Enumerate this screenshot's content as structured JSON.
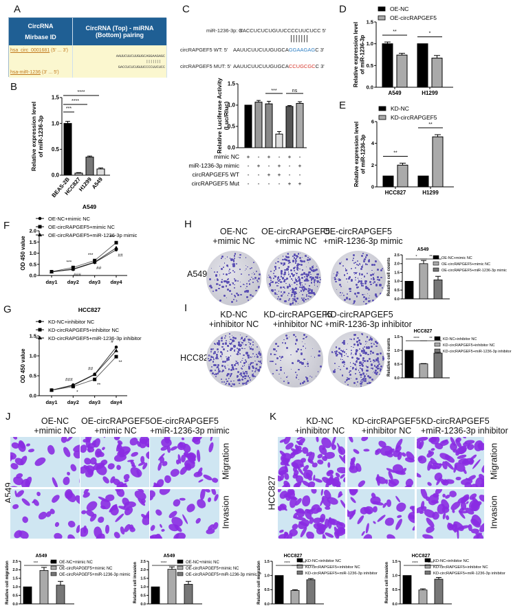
{
  "panels": {
    "A": {
      "label": "A",
      "header_left_1": "CircRNA",
      "header_left_2": "Mirbase ID",
      "header_right": "CircRNA (Top) - miRNA (Bottom) pairing",
      "circ_id": "hsa_circ_0001681",
      "circ_dir": "(5' ... 3')",
      "mir_id": "hsa-miR-1236",
      "mir_dir": "(3' ... 5')",
      "top_seq": "AAUUCUUCUUGUGCAGGAAGAGC",
      "pair_marks": "|||||||",
      "bottom_seq": "GACCUCUCUGUUCCCCUUCUCC"
    },
    "C_seq": {
      "label": "C",
      "mir_label": "miR-1236-3p: 3'",
      "mir_seq": "GACCUCUCUGUUCCCCUUCUCC  5'",
      "wt_label": "circRAPGEF5  WT: 5'",
      "wt_seq_prefix": "AAUUCUUCUUGUGCA",
      "wt_seq_site": "GGAAGAG",
      "wt_seq_suffix": "C 3'",
      "mut_label": "circRAPGEF5 MUT: 5'",
      "mut_seq_prefix": "AAUUCUUCUUGUGCA",
      "mut_seq_site": "CCUGCGC",
      "mut_seq_suffix": "C 3'",
      "pair_marks": "|||||||"
    },
    "F_title": "A549",
    "G_title": "HCC827",
    "H": {
      "label": "H",
      "row_label": "A549",
      "cols": [
        "OE-NC\n+mimic NC",
        "OE-circRAPGEF5\n+mimic NC",
        "OE-circRAPGEF5\n+miR-1236-3p mimic"
      ]
    },
    "I": {
      "label": "I",
      "row_label": "HCC827",
      "cols": [
        "KD-NC\n+inhibitor NC",
        "KD-circRAPGEF5\n+inhibitor NC",
        "KD-circRAPGEF5\n+miR-1236-3p inhibitor"
      ]
    },
    "J": {
      "label": "J",
      "row_label": "A549",
      "cols": [
        "OE-NC\n+mimic NC",
        "OE-circRAPGEF5\n+mimic NC",
        "OE-circRAPGEF5\n+miR-1236-3p mimic"
      ],
      "rows": [
        "Migration",
        "Invasion"
      ]
    },
    "K": {
      "label": "K",
      "row_label": "HCC827",
      "cols": [
        "KD-NC\n+inhibitor NC",
        "KD-circRAPGEF5\n+inhibitor NC",
        "KD-circRAPGEF5\n+miR-1236-3p inhibitor"
      ],
      "rows": [
        "Migration",
        "Invasion"
      ]
    }
  },
  "chart_data": [
    {
      "id": "B",
      "type": "bar",
      "title": "",
      "categories": [
        "BEAS-2B",
        "HCC827",
        "H1299",
        "A549"
      ],
      "values": [
        1.0,
        0.04,
        0.35,
        0.12
      ],
      "errors": [
        0.04,
        0.01,
        0.02,
        0.02
      ],
      "colors": [
        "#000000",
        "#bbbbbb",
        "#777777",
        "#dddddd"
      ],
      "ylabel": "Relative expression level of miR-1236-3p",
      "ylim": [
        0,
        1.5
      ],
      "yticks": [
        0.0,
        0.5,
        1.0,
        1.5
      ],
      "significance": [
        {
          "from": "BEAS-2B",
          "to": "HCC827",
          "label": "***"
        },
        {
          "from": "BEAS-2B",
          "to": "H1299",
          "label": "****"
        },
        {
          "from": "BEAS-2B",
          "to": "A549",
          "label": "****"
        }
      ]
    },
    {
      "id": "C",
      "type": "bar",
      "values": [
        1.0,
        1.07,
        1.03,
        0.32,
        0.97,
        1.04
      ],
      "errors": [
        0.0,
        0.04,
        0.06,
        0.06,
        0.02,
        0.04
      ],
      "colors": [
        "#000000",
        "#999999",
        "#888888",
        "#dddddd",
        "#555555",
        "#aaaaaa"
      ],
      "ylabel": "Relative Luciferase Activity (Luc/Rluc)",
      "ylim": [
        0,
        1.5
      ],
      "yticks": [
        0.0,
        0.5,
        1.0,
        1.5
      ],
      "condition_rows": [
        {
          "label": "mimic NC",
          "signs": [
            "+",
            "-",
            "+",
            "-",
            "+",
            "-"
          ]
        },
        {
          "label": "miR-1236-3p mimic",
          "signs": [
            "-",
            "+",
            "-",
            "+",
            "-",
            "+"
          ]
        },
        {
          "label": "circRAPGEF5 WT",
          "signs": [
            "-",
            "-",
            "+",
            "+",
            "-",
            "-"
          ]
        },
        {
          "label": "circRAPGEF5 Mut",
          "signs": [
            "-",
            "-",
            "-",
            "-",
            "+",
            "+"
          ]
        }
      ],
      "significance": [
        {
          "bars": [
            3,
            4
          ],
          "label": "***"
        },
        {
          "bars": [
            5,
            6
          ],
          "label": "ns"
        }
      ]
    },
    {
      "id": "D",
      "type": "bar",
      "categories": [
        "A549",
        "H1299"
      ],
      "series": [
        {
          "name": "OE-NC",
          "values": [
            1.0,
            1.0
          ],
          "errors": [
            0.04,
            0.0
          ],
          "color": "#000000"
        },
        {
          "name": "OE-circRAPGEF5",
          "values": [
            0.74,
            0.67
          ],
          "errors": [
            0.04,
            0.06
          ],
          "color": "#aaaaaa"
        }
      ],
      "ylabel": "Relative expression level of miR-1236-3p",
      "ylim": [
        0,
        1.5
      ],
      "yticks": [
        0.0,
        0.5,
        1.0,
        1.5
      ],
      "significance": [
        "**",
        "*"
      ]
    },
    {
      "id": "E",
      "type": "bar",
      "categories": [
        "HCC827",
        "H1299"
      ],
      "series": [
        {
          "name": "KD-NC",
          "values": [
            1.0,
            1.0
          ],
          "errors": [
            0.0,
            0.0
          ],
          "color": "#000000"
        },
        {
          "name": "KD-circRAPGEF5",
          "values": [
            2.0,
            4.6
          ],
          "errors": [
            0.18,
            0.2
          ],
          "color": "#aaaaaa"
        }
      ],
      "ylabel": "Relative expression level of miR-1236-3p",
      "ylim": [
        0,
        6
      ],
      "yticks": [
        0,
        2,
        4,
        6
      ],
      "significance": [
        "**",
        "**"
      ]
    },
    {
      "id": "F",
      "type": "line",
      "title": "A549",
      "x": [
        "day1",
        "day2",
        "day3",
        "day4"
      ],
      "series": [
        {
          "name": "OE-NC+mimic NC",
          "marker": "circle",
          "values": [
            0.16,
            0.27,
            0.58,
            1.15
          ]
        },
        {
          "name": "OE-circRAPGEF5+mimic NC",
          "marker": "square",
          "values": [
            0.17,
            0.36,
            0.67,
            1.47
          ]
        },
        {
          "name": "OE-circRAPGEF5+miR-1236-3p mimic",
          "marker": "triangle",
          "values": [
            0.16,
            0.29,
            0.6,
            1.24
          ]
        }
      ],
      "ylabel": "OD 450 value",
      "ylim": [
        0,
        2.0
      ],
      "yticks": [
        0.0,
        0.5,
        1.0,
        1.5,
        2.0
      ],
      "annotations_above": [
        "",
        "***",
        "***",
        "***"
      ],
      "annotations_below": [
        "",
        "###",
        "##",
        "##"
      ]
    },
    {
      "id": "G",
      "type": "line",
      "title": "HCC827",
      "x": [
        "day1",
        "day2",
        "day3",
        "day4"
      ],
      "series": [
        {
          "name": "KD-NC+inhibitor NC",
          "marker": "circle",
          "values": [
            0.14,
            0.27,
            0.54,
            1.22
          ]
        },
        {
          "name": "KD-circRAPGEF5+inhibitor NC",
          "marker": "square",
          "values": [
            0.14,
            0.23,
            0.41,
            0.98
          ]
        },
        {
          "name": "KD-circRAPGEF5+miR-1236-3p inhibitor",
          "marker": "triangle",
          "values": [
            0.14,
            0.26,
            0.53,
            1.13
          ]
        }
      ],
      "ylabel": "OD 450 value",
      "ylim": [
        0,
        1.5
      ],
      "yticks": [
        0.0,
        0.5,
        1.0,
        1.5
      ],
      "annotations_above": [
        "",
        "###",
        "##",
        "#"
      ],
      "annotations_below": [
        "",
        "*",
        "**",
        "**"
      ]
    },
    {
      "id": "H_bar",
      "type": "bar",
      "title": "A549",
      "categories": [
        "OE-NC+mimic NC",
        "OE-circRAPGEF5+mimic NC",
        "OE-circRAPGEF5+miR-1236-3p mimic"
      ],
      "values": [
        1.0,
        2.0,
        1.08
      ],
      "errors": [
        0.0,
        0.18,
        0.2
      ],
      "colors": [
        "#000000",
        "#aaaaaa",
        "#777777"
      ],
      "ylabel": "Relative cell counts",
      "ylim": [
        0,
        2.5
      ],
      "yticks": [
        0.0,
        0.5,
        1.0,
        1.5,
        2.0,
        2.5
      ],
      "significance": [
        "*",
        "**"
      ]
    },
    {
      "id": "I_bar",
      "type": "bar",
      "title": "HCC827",
      "categories": [
        "KD-NC+inhibitor NC",
        "KD-circRAPGEF5+inhibitor NC",
        "KD-circRAPGEF5+miR-1236-3p inhibitor"
      ],
      "values": [
        1.0,
        0.51,
        0.9
      ],
      "errors": [
        0.0,
        0.01,
        0.03
      ],
      "colors": [
        "#000000",
        "#aaaaaa",
        "#777777"
      ],
      "ylabel": "Relative cell counts",
      "ylim": [
        0,
        1.5
      ],
      "yticks": [
        0.0,
        0.5,
        1.0,
        1.5
      ],
      "significance": [
        "****",
        "**"
      ]
    },
    {
      "id": "J_mig",
      "type": "bar",
      "title": "A549",
      "categories": [
        "OE-NC+mimic NC",
        "OE-circRAPGEF5+mimic NC",
        "OE-circRAPGEF5+miR-1236-3p mimic"
      ],
      "values": [
        1.0,
        1.96,
        1.1
      ],
      "errors": [
        0.0,
        0.18,
        0.22
      ],
      "colors": [
        "#000000",
        "#aaaaaa",
        "#777777"
      ],
      "ylabel": "Relative cell migration",
      "ylim": [
        0,
        2.5
      ],
      "yticks": [
        0.0,
        0.5,
        1.0,
        1.5,
        2.0,
        2.5
      ],
      "significance": [
        "***",
        "***"
      ]
    },
    {
      "id": "J_inv",
      "type": "bar",
      "title": "A549",
      "categories": [
        "OE-NC+mimic NC",
        "OE-circRAPGEF5+mimic NC",
        "OE-circRAPGEF5+miR-1236-3p mimic"
      ],
      "values": [
        1.0,
        2.03,
        1.15
      ],
      "errors": [
        0.0,
        0.14,
        0.17
      ],
      "colors": [
        "#000000",
        "#aaaaaa",
        "#777777"
      ],
      "ylabel": "Relative cell invasion",
      "ylim": [
        0,
        2.5
      ],
      "yticks": [
        0.0,
        0.5,
        1.0,
        1.5,
        2.0,
        2.5
      ],
      "significance": [
        "****",
        "****"
      ]
    },
    {
      "id": "K_mig",
      "type": "bar",
      "title": "HCC827",
      "categories": [
        "KD-NC+inhibitor NC",
        "KD-circRAPGEF5+inhibitor NC",
        "KD-circRAPGEF5+miR-1236-3p inhibitor"
      ],
      "values": [
        1.0,
        0.47,
        0.85
      ],
      "errors": [
        0.0,
        0.03,
        0.04
      ],
      "colors": [
        "#000000",
        "#aaaaaa",
        "#777777"
      ],
      "ylabel": "Relative cell migration",
      "ylim": [
        0,
        1.5
      ],
      "yticks": [
        0.0,
        0.5,
        1.0,
        1.5
      ],
      "significance": [
        "****",
        "****"
      ]
    },
    {
      "id": "K_inv",
      "type": "bar",
      "title": "HCC827",
      "categories": [
        "KD-NC+inhibitor NC",
        "KD-circRAPGEF5+inhibitor NC",
        "KD-circRAPGEF5+miR-1236-3p inhibitor"
      ],
      "values": [
        1.0,
        0.49,
        0.87
      ],
      "errors": [
        0.0,
        0.04,
        0.06
      ],
      "colors": [
        "#000000",
        "#aaaaaa",
        "#777777"
      ],
      "ylabel": "Relative cell invasion",
      "ylim": [
        0,
        1.5
      ],
      "yticks": [
        0.0,
        0.5,
        1.0,
        1.5
      ],
      "significance": [
        "****",
        "****"
      ]
    }
  ]
}
